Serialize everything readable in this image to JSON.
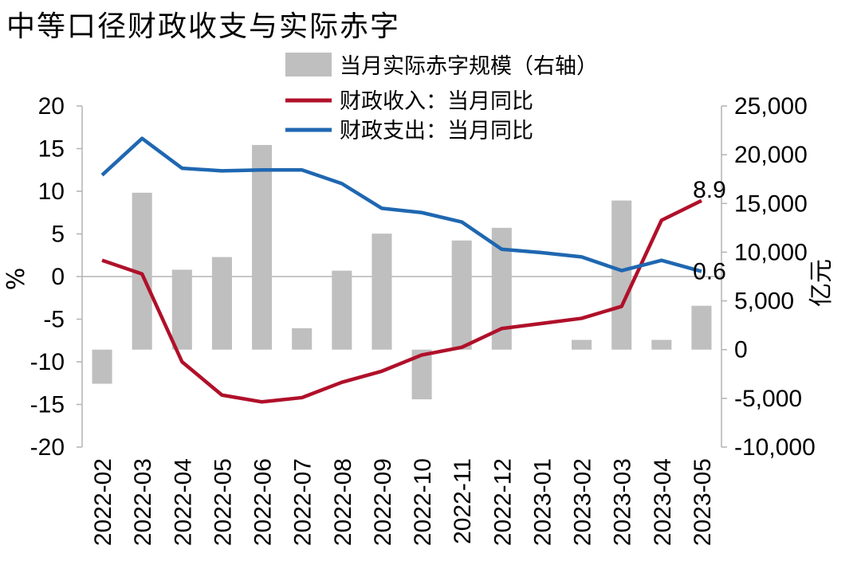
{
  "chart_data": {
    "type": "bar",
    "title": "中等口径财政收支与实际赤字",
    "ylabel": "%",
    "y2label": "亿元",
    "ylim": [
      -20,
      20
    ],
    "y2lim": [
      -10000,
      25000
    ],
    "yticks": [
      20,
      15,
      10,
      5,
      0,
      -5,
      -10,
      -15,
      -20
    ],
    "y2ticks": [
      "25,000",
      "20,000",
      "15,000",
      "10,000",
      "5,000",
      "0",
      "-5,000",
      "-10,000"
    ],
    "y2tick_values": [
      25000,
      20000,
      15000,
      10000,
      5000,
      0,
      -5000,
      -10000
    ],
    "categories": [
      "2022-02",
      "2022-03",
      "2022-04",
      "2022-05",
      "2022-06",
      "2022-07",
      "2022-08",
      "2022-09",
      "2022-10",
      "2022-11",
      "2022-12",
      "2023-01",
      "2023-02",
      "2023-03",
      "2023-04",
      "2023-05"
    ],
    "legend": "top-center",
    "series": [
      {
        "name": "当月实际赤字规模（右轴）",
        "kind": "bar",
        "axis": "right",
        "color": "#bfbfbf",
        "values": [
          -3500,
          16100,
          8200,
          9500,
          21000,
          2200,
          8100,
          11900,
          -5100,
          11200,
          12500,
          null,
          1000,
          15300,
          1000,
          4500
        ]
      },
      {
        "name": "财政收入：当月同比",
        "kind": "line",
        "axis": "left",
        "color": "#b0102a",
        "values": [
          1.9,
          0.3,
          -10.0,
          -13.9,
          -14.7,
          -14.2,
          -12.4,
          -11.1,
          -9.2,
          -8.3,
          -6.1,
          -5.5,
          -4.9,
          -3.5,
          6.6,
          8.9
        ]
      },
      {
        "name": "财政支出：当月同比",
        "kind": "line",
        "axis": "left",
        "color": "#1f67b1",
        "values": [
          11.9,
          16.2,
          12.7,
          12.4,
          12.5,
          12.5,
          10.9,
          8.0,
          7.5,
          6.4,
          3.2,
          2.8,
          2.3,
          0.7,
          1.9,
          0.6
        ]
      }
    ],
    "annotations": [
      {
        "text": "8.9",
        "series": 1,
        "index": 15
      },
      {
        "text": "0.6",
        "series": 2,
        "index": 15
      }
    ]
  }
}
